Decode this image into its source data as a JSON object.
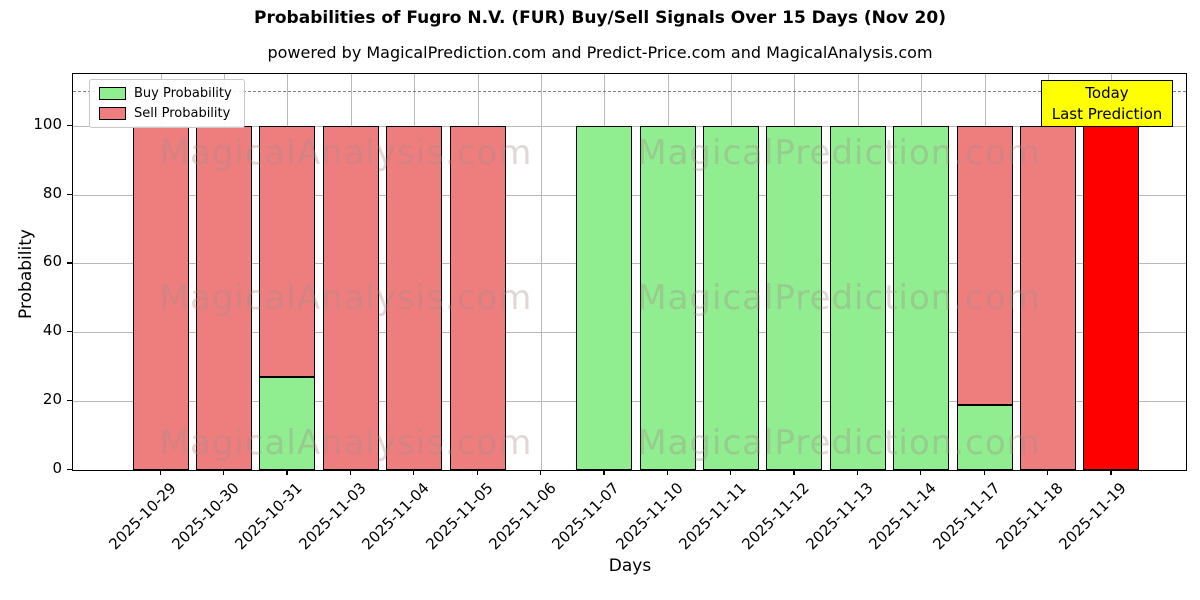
{
  "figure": {
    "title": "Probabilities of Fugro N.V. (FUR) Buy/Sell Signals Over 15 Days (Nov 20)",
    "subtitle": "powered by MagicalPrediction.com and Predict-Price.com and MagicalAnalysis.com"
  },
  "chart_data": {
    "type": "bar",
    "stacked": true,
    "title": "Probabilities of Fugro N.V. (FUR) Buy/Sell Signals Over 15 Days (Nov 20)",
    "subtitle": "powered by MagicalPrediction.com and Predict-Price.com and MagicalAnalysis.com",
    "xlabel": "Days",
    "ylabel": "Probability",
    "ylim": [
      0,
      115
    ],
    "yticks": [
      0,
      20,
      40,
      60,
      80,
      100
    ],
    "dashed_line_y": 110,
    "grid": true,
    "legend_position": "upper left",
    "legend": [
      {
        "label": "Buy Probability",
        "color": "#90ee90"
      },
      {
        "label": "Sell Probability",
        "color": "#ee7d7d"
      }
    ],
    "categories": [
      "2025-10-29",
      "2025-10-30",
      "2025-10-31",
      "2025-11-03",
      "2025-11-04",
      "2025-11-05",
      "2025-11-06",
      "2025-11-07",
      "2025-11-10",
      "2025-11-11",
      "2025-11-12",
      "2025-11-13",
      "2025-11-14",
      "2025-11-17",
      "2025-11-18",
      "2025-11-19"
    ],
    "series": [
      {
        "name": "Buy Probability",
        "color": "#90ee90",
        "values": [
          0,
          0,
          27,
          0,
          0,
          0,
          0,
          100,
          100,
          100,
          100,
          100,
          100,
          19,
          0,
          0
        ]
      },
      {
        "name": "Sell Probability",
        "color": "#ee7d7d",
        "values": [
          100,
          100,
          73,
          100,
          100,
          100,
          0,
          0,
          0,
          0,
          0,
          0,
          0,
          81,
          100,
          0
        ]
      },
      {
        "name": "Last Prediction (Sell)",
        "color": "#ff0000",
        "values": [
          0,
          0,
          0,
          0,
          0,
          0,
          0,
          0,
          0,
          0,
          0,
          0,
          0,
          0,
          0,
          100
        ]
      }
    ],
    "annotation": {
      "lines": [
        "Today",
        "Last Prediction"
      ],
      "bg": "#ffff00"
    },
    "watermarks": [
      "MagicalAnalysis.com",
      "MagicalPrediction.com"
    ]
  }
}
